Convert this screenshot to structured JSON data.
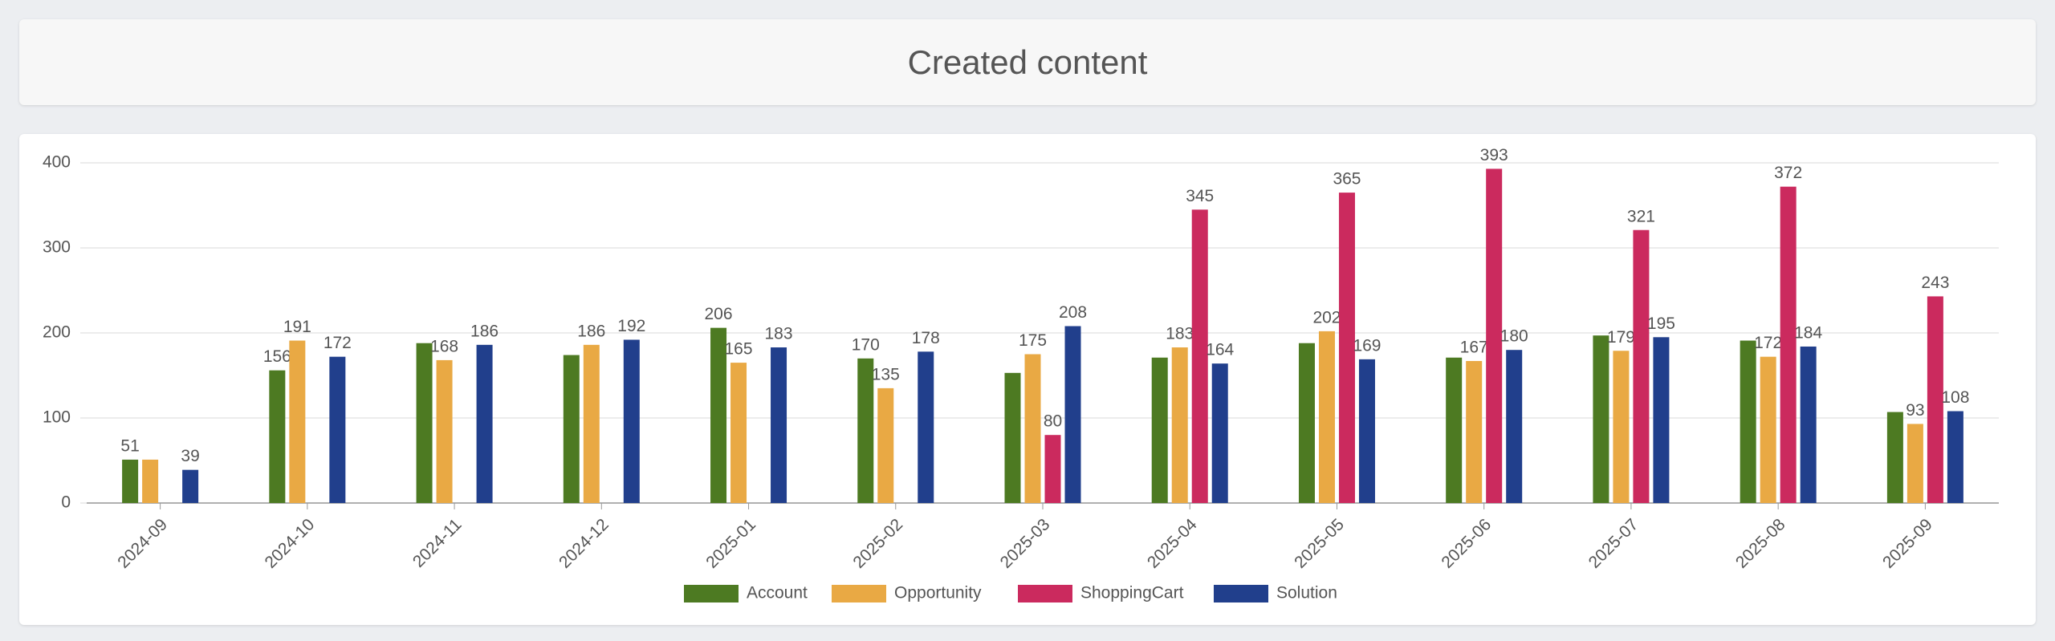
{
  "chart_data": {
    "type": "bar",
    "title": "Created content",
    "categories": [
      "2024-09",
      "2024-10",
      "2024-11",
      "2024-12",
      "2025-01",
      "2025-02",
      "2025-03",
      "2025-04",
      "2025-05",
      "2025-06",
      "2025-07",
      "2025-08",
      "2025-09"
    ],
    "series": [
      {
        "name": "Account",
        "color": "#4d7a22",
        "values": [
          51,
          156,
          188,
          174,
          206,
          170,
          153,
          171,
          188,
          171,
          197,
          191,
          107
        ],
        "value_labels": [
          "51",
          "156",
          null,
          null,
          "206",
          "170",
          null,
          null,
          null,
          null,
          null,
          null,
          null
        ]
      },
      {
        "name": "Opportunity",
        "color": "#e9a944",
        "values": [
          51,
          191,
          168,
          186,
          165,
          135,
          175,
          183,
          202,
          167,
          179,
          172,
          93
        ],
        "value_labels": [
          null,
          "191",
          "168",
          "186",
          "165",
          "135",
          "175",
          "183",
          "202",
          "167",
          "179",
          "172",
          "93"
        ]
      },
      {
        "name": "ShoppingCart",
        "color": "#cb2a5e",
        "values": [
          null,
          null,
          null,
          null,
          null,
          null,
          80,
          345,
          365,
          393,
          321,
          372,
          243
        ],
        "value_labels": [
          null,
          null,
          null,
          null,
          null,
          null,
          "80",
          "345",
          "365",
          "393",
          "321",
          "372",
          "243"
        ]
      },
      {
        "name": "Solution",
        "color": "#213f8c",
        "values": [
          39,
          172,
          186,
          192,
          183,
          178,
          208,
          164,
          169,
          180,
          195,
          184,
          108
        ],
        "value_labels": [
          "39",
          "172",
          "186",
          "192",
          "183",
          "178",
          "208",
          "164",
          "169",
          "180",
          "195",
          "184",
          "108"
        ]
      }
    ],
    "ylim": [
      0,
      400
    ],
    "yticks": [
      0,
      100,
      200,
      300,
      400
    ],
    "grid": true,
    "legend": "bottom"
  }
}
